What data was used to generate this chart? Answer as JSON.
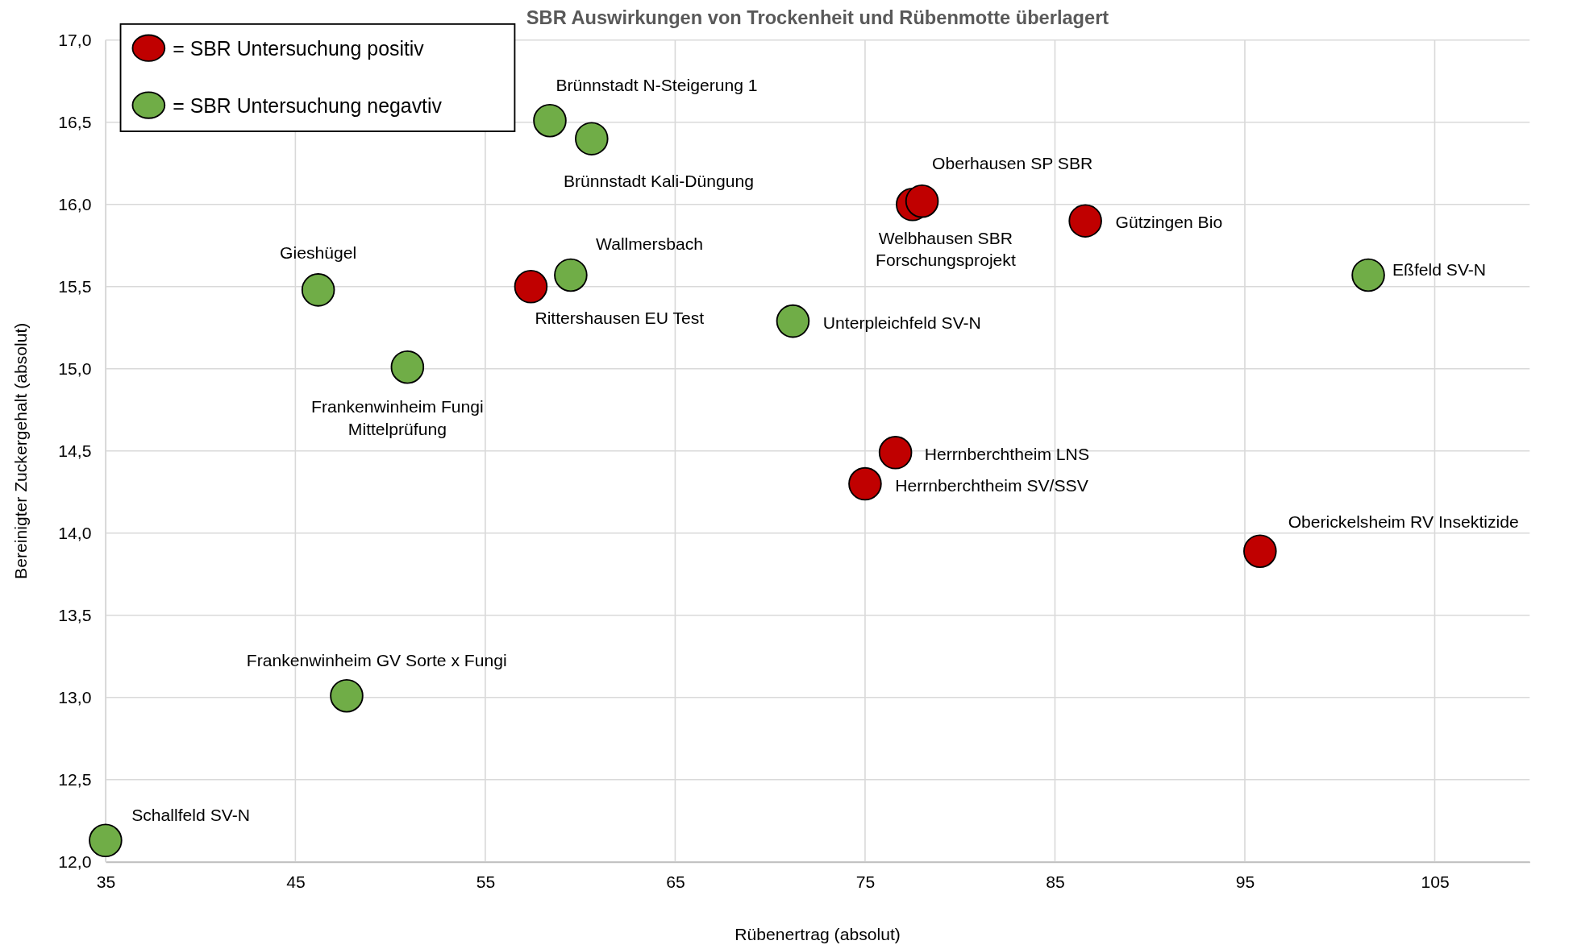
{
  "chart_data": {
    "type": "scatter",
    "title": "SBR Auswirkungen von Trockenheit und Rübenmotte überlagert",
    "xlabel": "Rübenertrag (absolut)",
    "ylabel": "Bereinigter Zuckergehalt (absolut)",
    "series": [
      {
        "name": "= SBR Untersuchung positiv",
        "color": "#c00000",
        "x": [
          77.5,
          78.0,
          86.6,
          57.4,
          76.6,
          75.0,
          95.8
        ],
        "values": [
          16.0,
          16.02,
          15.9,
          15.5,
          14.49,
          14.3,
          13.89
        ]
      },
      {
        "name": "= SBR Untersuchung negavtiv",
        "color": "#70ad47",
        "x": [
          58.4,
          60.6,
          59.5,
          46.2,
          50.9,
          71.2,
          101.5,
          47.7,
          35.0
        ],
        "values": [
          16.51,
          16.4,
          15.57,
          15.48,
          15.01,
          15.29,
          15.57,
          13.01,
          12.13
        ]
      }
    ],
    "annotations": [
      {
        "text": "Welbhausen SBR\nForschungsprojekt",
        "x": 77.5,
        "y": 16.0
      },
      {
        "text": "Oberhausen SP SBR",
        "x": 78.0,
        "y": 16.02
      },
      {
        "text": "Gützingen Bio",
        "x": 86.6,
        "y": 15.9
      },
      {
        "text": "Rittershausen EU Test",
        "x": 57.4,
        "y": 15.5
      },
      {
        "text": "Herrnberchtheim LNS",
        "x": 76.6,
        "y": 14.49
      },
      {
        "text": "Herrnberchtheim SV/SSV",
        "x": 75.0,
        "y": 14.3
      },
      {
        "text": "Oberickelsheim RV Insektizide",
        "x": 95.8,
        "y": 13.89
      },
      {
        "text": "Brünnstadt N-Steigerung 1",
        "x": 58.4,
        "y": 16.51
      },
      {
        "text": "Brünnstadt Kali-Düngung",
        "x": 60.6,
        "y": 16.4
      },
      {
        "text": "Wallmersbach",
        "x": 59.5,
        "y": 15.57
      },
      {
        "text": "Gieshügel",
        "x": 46.2,
        "y": 15.48
      },
      {
        "text": "Frankenwinheim Fungi\nMittelprüfung",
        "x": 50.9,
        "y": 15.01
      },
      {
        "text": "Unterpleichfeld SV-N",
        "x": 71.2,
        "y": 15.29
      },
      {
        "text": "Eßfeld SV-N",
        "x": 101.5,
        "y": 15.57
      },
      {
        "text": "Frankenwinheim GV Sorte x Fungi",
        "x": 47.7,
        "y": 13.01
      },
      {
        "text": "Schallfeld SV-N",
        "x": 35.0,
        "y": 12.13
      }
    ],
    "xlim": [
      35,
      110
    ],
    "xticks": [
      35,
      45,
      55,
      65,
      75,
      85,
      95,
      105
    ],
    "ylim": [
      12,
      17
    ],
    "yticks": [
      {
        "value": 12,
        "label": "12,0"
      },
      {
        "value": 12.5,
        "label": "12,5"
      },
      {
        "value": 13,
        "label": "13,0"
      },
      {
        "value": 13.5,
        "label": "13,5"
      },
      {
        "value": 14,
        "label": "14,0"
      },
      {
        "value": 14.5,
        "label": "14,5"
      },
      {
        "value": 15,
        "label": "15,0"
      },
      {
        "value": 15.5,
        "label": "15,5"
      },
      {
        "value": 16,
        "label": "16,0"
      },
      {
        "value": 16.5,
        "label": "16,5"
      },
      {
        "value": 17,
        "label": "17,0"
      }
    ],
    "grid": true,
    "legend": "top left",
    "marker": "circle"
  }
}
